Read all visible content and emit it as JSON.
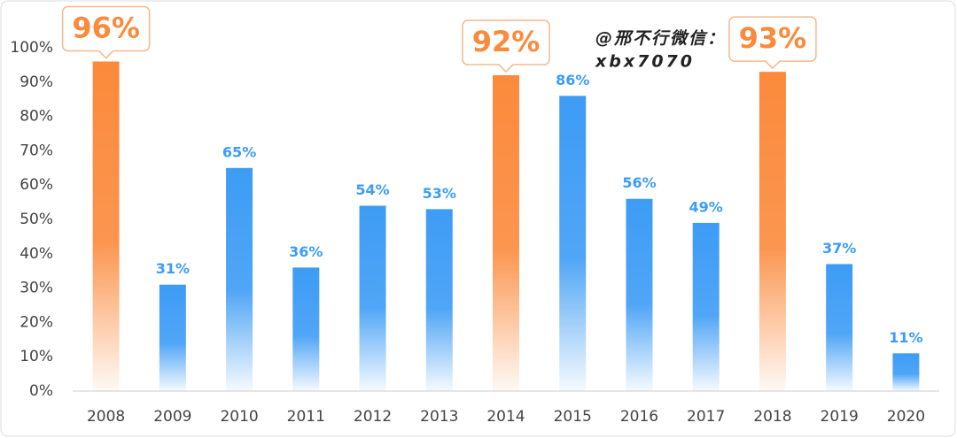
{
  "chart_data": {
    "type": "bar",
    "categories": [
      "2008",
      "2009",
      "2010",
      "2011",
      "2012",
      "2013",
      "2014",
      "2015",
      "2016",
      "2017",
      "2018",
      "2019",
      "2020"
    ],
    "values": [
      96,
      31,
      65,
      36,
      54,
      53,
      92,
      86,
      56,
      49,
      93,
      37,
      11
    ],
    "value_labels": [
      "96%",
      "31%",
      "65%",
      "36%",
      "54%",
      "53%",
      "92%",
      "86%",
      "56%",
      "49%",
      "93%",
      "37%",
      "11%"
    ],
    "colors": [
      "#fb8a3c",
      "#3d9cf5",
      "#3d9cf5",
      "#3d9cf5",
      "#3d9cf5",
      "#3d9cf5",
      "#fb8a3c",
      "#3d9cf5",
      "#3d9cf5",
      "#3d9cf5",
      "#fb8a3c",
      "#3d9cf5",
      "#3d9cf5"
    ],
    "highlight_color": "#fb8a3c",
    "ylim": [
      0,
      100
    ],
    "yticks": [
      {
        "value": 0,
        "label": "0%"
      },
      {
        "value": 10,
        "label": "10%"
      },
      {
        "value": 20,
        "label": "20%"
      },
      {
        "value": 30,
        "label": "30%"
      },
      {
        "value": 40,
        "label": "40%"
      },
      {
        "value": 50,
        "label": "50%"
      },
      {
        "value": 60,
        "label": "60%"
      },
      {
        "value": 70,
        "label": "70%"
      },
      {
        "value": 80,
        "label": "80%"
      },
      {
        "value": 90,
        "label": "90%"
      },
      {
        "value": 100,
        "label": "100%"
      }
    ],
    "grid": false,
    "annotations": [
      "@邢不行微信：",
      "xbx7070"
    ]
  }
}
